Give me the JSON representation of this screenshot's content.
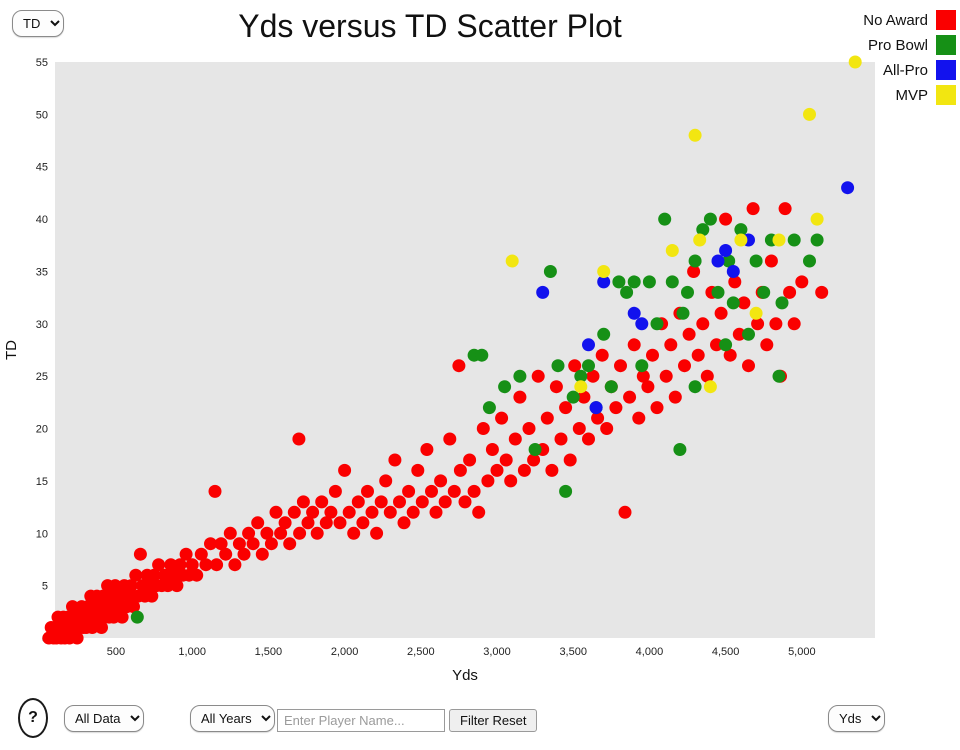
{
  "title": "Yds versus TD Scatter Plot",
  "controls": {
    "y_axis_select": {
      "value": "TD"
    },
    "data_filter_select": {
      "value": "All Data"
    },
    "year_select": {
      "value": "All Years"
    },
    "player_search": {
      "placeholder": "Enter Player Name..."
    },
    "filter_reset_label": "Filter Reset",
    "x_axis_select": {
      "value": "Yds"
    },
    "help_label": "?"
  },
  "chart_data": {
    "type": "scatter",
    "title": "Yds versus TD Scatter Plot",
    "xlabel": "Yds",
    "ylabel": "TD",
    "xlim": [
      100,
      5480
    ],
    "ylim": [
      0,
      55
    ],
    "grid": false,
    "plot_background": "#e6e6e6",
    "legend_position": "top-right",
    "x_tick_values": [
      500,
      1000,
      1500,
      2000,
      2500,
      3000,
      3500,
      4000,
      4500,
      5000
    ],
    "x_tick_labels": [
      "500",
      "1,000",
      "1,500",
      "2,000",
      "2,500",
      "3,000",
      "3,500",
      "4,000",
      "4,500",
      "5,000"
    ],
    "y_tick_values": [
      0,
      5,
      10,
      15,
      20,
      25,
      30,
      35,
      40,
      45,
      50,
      55
    ],
    "y_tick_labels": [
      "0",
      "5",
      "10",
      "15",
      "20",
      "25",
      "30",
      "35",
      "40",
      "45",
      "50",
      "55"
    ],
    "legend": [
      {
        "label": "No Award",
        "color": "#fa0000"
      },
      {
        "label": "Pro Bowl",
        "color": "#169016"
      },
      {
        "label": "All-Pro",
        "color": "#1212ee"
      },
      {
        "label": "MVP",
        "color": "#f2e611"
      }
    ],
    "series": [
      {
        "name": "No Award",
        "color": "#fa0000",
        "points": [
          [
            60,
            0
          ],
          [
            75,
            1
          ],
          [
            90,
            0
          ],
          [
            100,
            1
          ],
          [
            110,
            0
          ],
          [
            120,
            2
          ],
          [
            130,
            1
          ],
          [
            140,
            0
          ],
          [
            150,
            1
          ],
          [
            155,
            2
          ],
          [
            165,
            0
          ],
          [
            175,
            1
          ],
          [
            185,
            2
          ],
          [
            195,
            0
          ],
          [
            205,
            1
          ],
          [
            215,
            3
          ],
          [
            225,
            1
          ],
          [
            235,
            2
          ],
          [
            245,
            0
          ],
          [
            255,
            1
          ],
          [
            265,
            2
          ],
          [
            275,
            3
          ],
          [
            285,
            1
          ],
          [
            295,
            2
          ],
          [
            305,
            1
          ],
          [
            315,
            3
          ],
          [
            325,
            2
          ],
          [
            335,
            4
          ],
          [
            345,
            1
          ],
          [
            355,
            3
          ],
          [
            365,
            2
          ],
          [
            375,
            4
          ],
          [
            385,
            2
          ],
          [
            395,
            3
          ],
          [
            405,
            1
          ],
          [
            415,
            4
          ],
          [
            425,
            2
          ],
          [
            435,
            3
          ],
          [
            445,
            5
          ],
          [
            455,
            2
          ],
          [
            465,
            3
          ],
          [
            475,
            4
          ],
          [
            485,
            2
          ],
          [
            495,
            5
          ],
          [
            510,
            3
          ],
          [
            525,
            4
          ],
          [
            540,
            2
          ],
          [
            555,
            5
          ],
          [
            570,
            3
          ],
          [
            585,
            4
          ],
          [
            600,
            5
          ],
          [
            615,
            3
          ],
          [
            630,
            6
          ],
          [
            645,
            4
          ],
          [
            660,
            8
          ],
          [
            675,
            5
          ],
          [
            690,
            4
          ],
          [
            705,
            6
          ],
          [
            720,
            5
          ],
          [
            735,
            4
          ],
          [
            750,
            6
          ],
          [
            765,
            5
          ],
          [
            780,
            7
          ],
          [
            800,
            5
          ],
          [
            820,
            6
          ],
          [
            840,
            5
          ],
          [
            860,
            7
          ],
          [
            880,
            6
          ],
          [
            900,
            5
          ],
          [
            920,
            7
          ],
          [
            940,
            6
          ],
          [
            960,
            8
          ],
          [
            980,
            6
          ],
          [
            1000,
            7
          ],
          [
            1030,
            6
          ],
          [
            1060,
            8
          ],
          [
            1090,
            7
          ],
          [
            1120,
            9
          ],
          [
            1150,
            14
          ],
          [
            1160,
            7
          ],
          [
            1190,
            9
          ],
          [
            1220,
            8
          ],
          [
            1250,
            10
          ],
          [
            1280,
            7
          ],
          [
            1310,
            9
          ],
          [
            1340,
            8
          ],
          [
            1370,
            10
          ],
          [
            1400,
            9
          ],
          [
            1430,
            11
          ],
          [
            1460,
            8
          ],
          [
            1490,
            10
          ],
          [
            1520,
            9
          ],
          [
            1550,
            12
          ],
          [
            1580,
            10
          ],
          [
            1610,
            11
          ],
          [
            1640,
            9
          ],
          [
            1670,
            12
          ],
          [
            1700,
            19
          ],
          [
            1705,
            10
          ],
          [
            1730,
            13
          ],
          [
            1760,
            11
          ],
          [
            1790,
            12
          ],
          [
            1820,
            10
          ],
          [
            1850,
            13
          ],
          [
            1880,
            11
          ],
          [
            1910,
            12
          ],
          [
            1940,
            14
          ],
          [
            1970,
            11
          ],
          [
            2000,
            16
          ],
          [
            2030,
            12
          ],
          [
            2060,
            10
          ],
          [
            2090,
            13
          ],
          [
            2120,
            11
          ],
          [
            2150,
            14
          ],
          [
            2180,
            12
          ],
          [
            2210,
            10
          ],
          [
            2240,
            13
          ],
          [
            2270,
            15
          ],
          [
            2300,
            12
          ],
          [
            2330,
            17
          ],
          [
            2360,
            13
          ],
          [
            2390,
            11
          ],
          [
            2420,
            14
          ],
          [
            2450,
            12
          ],
          [
            2480,
            16
          ],
          [
            2510,
            13
          ],
          [
            2540,
            18
          ],
          [
            2570,
            14
          ],
          [
            2600,
            12
          ],
          [
            2630,
            15
          ],
          [
            2660,
            13
          ],
          [
            2690,
            19
          ],
          [
            2720,
            14
          ],
          [
            2750,
            26
          ],
          [
            2760,
            16
          ],
          [
            2790,
            13
          ],
          [
            2820,
            17
          ],
          [
            2850,
            14
          ],
          [
            2880,
            12
          ],
          [
            2910,
            20
          ],
          [
            2940,
            15
          ],
          [
            2970,
            18
          ],
          [
            3000,
            16
          ],
          [
            3030,
            21
          ],
          [
            3060,
            17
          ],
          [
            3090,
            15
          ],
          [
            3120,
            19
          ],
          [
            3150,
            23
          ],
          [
            3180,
            16
          ],
          [
            3210,
            20
          ],
          [
            3240,
            17
          ],
          [
            3270,
            25
          ],
          [
            3300,
            18
          ],
          [
            3330,
            21
          ],
          [
            3360,
            16
          ],
          [
            3390,
            24
          ],
          [
            3420,
            19
          ],
          [
            3450,
            22
          ],
          [
            3480,
            17
          ],
          [
            3510,
            26
          ],
          [
            3540,
            20
          ],
          [
            3570,
            23
          ],
          [
            3600,
            19
          ],
          [
            3630,
            25
          ],
          [
            3660,
            21
          ],
          [
            3690,
            27
          ],
          [
            3720,
            20
          ],
          [
            3750,
            24
          ],
          [
            3780,
            22
          ],
          [
            3810,
            26
          ],
          [
            3840,
            12
          ],
          [
            3870,
            23
          ],
          [
            3900,
            28
          ],
          [
            3930,
            21
          ],
          [
            3960,
            25
          ],
          [
            3990,
            24
          ],
          [
            4020,
            27
          ],
          [
            4050,
            22
          ],
          [
            4080,
            30
          ],
          [
            4110,
            25
          ],
          [
            4140,
            28
          ],
          [
            4170,
            23
          ],
          [
            4200,
            31
          ],
          [
            4230,
            26
          ],
          [
            4260,
            29
          ],
          [
            4290,
            35
          ],
          [
            4320,
            27
          ],
          [
            4350,
            30
          ],
          [
            4380,
            25
          ],
          [
            4410,
            33
          ],
          [
            4440,
            28
          ],
          [
            4470,
            31
          ],
          [
            4500,
            40
          ],
          [
            4530,
            27
          ],
          [
            4560,
            34
          ],
          [
            4590,
            29
          ],
          [
            4620,
            32
          ],
          [
            4650,
            26
          ],
          [
            4680,
            41
          ],
          [
            4710,
            30
          ],
          [
            4740,
            33
          ],
          [
            4770,
            28
          ],
          [
            4800,
            36
          ],
          [
            4830,
            30
          ],
          [
            4860,
            25
          ],
          [
            4890,
            41
          ],
          [
            4920,
            33
          ],
          [
            4950,
            30
          ],
          [
            5000,
            34
          ],
          [
            5130,
            33
          ]
        ]
      },
      {
        "name": "Pro Bowl",
        "color": "#169016",
        "points": [
          [
            640,
            2
          ],
          [
            2850,
            27
          ],
          [
            2900,
            27
          ],
          [
            2950,
            22
          ],
          [
            3050,
            24
          ],
          [
            3150,
            25
          ],
          [
            3250,
            18
          ],
          [
            3350,
            35
          ],
          [
            3400,
            26
          ],
          [
            3450,
            14
          ],
          [
            3500,
            23
          ],
          [
            3550,
            25
          ],
          [
            3600,
            26
          ],
          [
            3650,
            22
          ],
          [
            3700,
            29
          ],
          [
            3750,
            24
          ],
          [
            3800,
            34
          ],
          [
            3850,
            33
          ],
          [
            3900,
            34
          ],
          [
            3950,
            26
          ],
          [
            4000,
            34
          ],
          [
            4050,
            30
          ],
          [
            4100,
            40
          ],
          [
            4150,
            34
          ],
          [
            4200,
            18
          ],
          [
            4220,
            31
          ],
          [
            4250,
            33
          ],
          [
            4300,
            36
          ],
          [
            4300,
            24
          ],
          [
            4350,
            39
          ],
          [
            4400,
            40
          ],
          [
            4450,
            33
          ],
          [
            4500,
            28
          ],
          [
            4520,
            36
          ],
          [
            4550,
            32
          ],
          [
            4600,
            39
          ],
          [
            4650,
            29
          ],
          [
            4700,
            36
          ],
          [
            4750,
            33
          ],
          [
            4800,
            38
          ],
          [
            4850,
            25
          ],
          [
            4870,
            32
          ],
          [
            4950,
            38
          ],
          [
            5050,
            36
          ],
          [
            5100,
            38
          ]
        ]
      },
      {
        "name": "All-Pro",
        "color": "#1212ee",
        "points": [
          [
            3300,
            33
          ],
          [
            3600,
            28
          ],
          [
            3650,
            22
          ],
          [
            3700,
            34
          ],
          [
            3900,
            31
          ],
          [
            3950,
            30
          ],
          [
            4450,
            36
          ],
          [
            4500,
            37
          ],
          [
            4550,
            35
          ],
          [
            4650,
            38
          ],
          [
            5300,
            43
          ]
        ]
      },
      {
        "name": "MVP",
        "color": "#f2e611",
        "points": [
          [
            3100,
            36
          ],
          [
            3550,
            24
          ],
          [
            3700,
            35
          ],
          [
            4150,
            37
          ],
          [
            4300,
            48
          ],
          [
            4330,
            38
          ],
          [
            4400,
            24
          ],
          [
            4600,
            38
          ],
          [
            4700,
            31
          ],
          [
            4850,
            38
          ],
          [
            5050,
            50
          ],
          [
            5100,
            40
          ],
          [
            5350,
            55
          ]
        ]
      }
    ]
  }
}
